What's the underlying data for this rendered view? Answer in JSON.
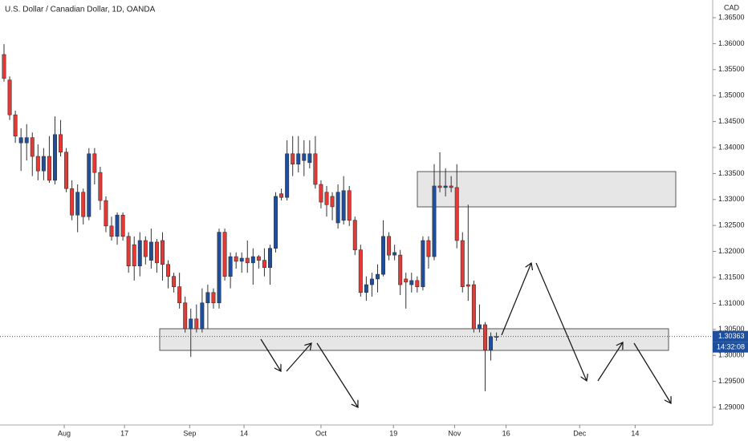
{
  "chart_data": {
    "type": "candlestick",
    "title": "U.S. Dollar / Canadian Dollar, 1D, OANDA",
    "currency": "CAD",
    "up_color": "#1d4f9e",
    "down_color": "#e53935",
    "grid": false,
    "open": [
      1.3579,
      1.353,
      1.3463,
      1.3409,
      1.3409,
      1.3419,
      1.3383,
      1.3355,
      1.3383,
      1.3337,
      1.3425,
      1.3391,
      1.3321,
      1.327,
      1.3314,
      1.3267,
      1.3388,
      1.3352,
      1.3298,
      1.3249,
      1.3229,
      1.327,
      1.3229,
      1.3213,
      1.3172,
      1.3221,
      1.3183,
      1.3218,
      1.3221,
      1.3175,
      1.3152,
      1.3132,
      1.3101,
      1.3051,
      1.307,
      1.3051,
      1.3101,
      1.3121,
      1.3101,
      1.3237,
      1.3152,
      1.319,
      1.3181,
      1.3187,
      1.3178,
      1.319,
      1.3183,
      1.3169,
      1.3206,
      1.3311,
      1.3304,
      1.3388,
      1.3368,
      1.3375,
      1.3371,
      1.3388,
      1.3329,
      1.3314,
      1.3306,
      1.3255,
      1.326,
      1.3317,
      1.326,
      1.3203,
      1.3121,
      1.3136,
      1.3147,
      1.3156,
      1.3229,
      1.3193,
      1.3193,
      1.3147,
      1.3136,
      1.3144,
      1.3132,
      1.3221,
      1.319,
      1.3326,
      1.3323,
      1.3326,
      1.3323,
      1.3221,
      1.3136,
      1.3136,
      1.3051,
      1.3059,
      1.301,
      1.3036
    ],
    "high": [
      1.3599,
      1.3537,
      1.3471,
      1.3437,
      1.3445,
      1.3429,
      1.3406,
      1.3399,
      1.3422,
      1.346,
      1.3453,
      1.3399,
      1.3337,
      1.3329,
      1.3321,
      1.3399,
      1.3399,
      1.3363,
      1.3306,
      1.3267,
      1.3275,
      1.3275,
      1.3237,
      1.3229,
      1.3237,
      1.3229,
      1.3244,
      1.3224,
      1.3237,
      1.3183,
      1.3159,
      1.3159,
      1.3113,
      1.309,
      1.3098,
      1.3129,
      1.3136,
      1.3129,
      1.3244,
      1.3244,
      1.3198,
      1.3198,
      1.3198,
      1.3221,
      1.3206,
      1.3193,
      1.3206,
      1.3213,
      1.3314,
      1.3321,
      1.3414,
      1.3422,
      1.3422,
      1.3414,
      1.3414,
      1.3422,
      1.3337,
      1.3326,
      1.3314,
      1.3329,
      1.3345,
      1.3326,
      1.3267,
      1.3213,
      1.3152,
      1.3159,
      1.3175,
      1.326,
      1.3237,
      1.3213,
      1.3203,
      1.3159,
      1.3159,
      1.3152,
      1.3229,
      1.3229,
      1.3368,
      1.3391,
      1.336,
      1.3345,
      1.3368,
      1.3237,
      1.329,
      1.3144,
      1.3098,
      1.3064,
      1.3044,
      1.3044
    ],
    "low": [
      1.3527,
      1.3453,
      1.3409,
      1.3355,
      1.3375,
      1.3345,
      1.3337,
      1.3337,
      1.3332,
      1.3329,
      1.3383,
      1.3314,
      1.326,
      1.3237,
      1.3252,
      1.326,
      1.3329,
      1.328,
      1.3237,
      1.3221,
      1.3213,
      1.3221,
      1.3159,
      1.3144,
      1.3152,
      1.3175,
      1.3167,
      1.3159,
      1.3144,
      1.3129,
      1.3121,
      1.309,
      1.3044,
      1.2997,
      1.3044,
      1.3044,
      1.3051,
      1.309,
      1.309,
      1.3144,
      1.3129,
      1.3167,
      1.3159,
      1.3159,
      1.3136,
      1.3167,
      1.3152,
      1.3136,
      1.3198,
      1.3298,
      1.3298,
      1.3345,
      1.3352,
      1.3345,
      1.336,
      1.3321,
      1.3283,
      1.3267,
      1.326,
      1.3244,
      1.3252,
      1.3249,
      1.3193,
      1.3113,
      1.3105,
      1.3113,
      1.3121,
      1.3152,
      1.3183,
      1.3183,
      1.3116,
      1.309,
      1.3121,
      1.3121,
      1.3125,
      1.3167,
      1.3183,
      1.3314,
      1.3306,
      1.3314,
      1.3206,
      1.3121,
      1.3105,
      1.3044,
      1.3044,
      1.2931,
      1.299,
      1.3028
    ],
    "close": [
      1.3533,
      1.3463,
      1.3422,
      1.3419,
      1.3419,
      1.3383,
      1.3355,
      1.3383,
      1.3337,
      1.3425,
      1.3391,
      1.3321,
      1.327,
      1.3314,
      1.3267,
      1.3388,
      1.3352,
      1.3298,
      1.3249,
      1.3229,
      1.327,
      1.3229,
      1.3172,
      1.3172,
      1.3221,
      1.319,
      1.3218,
      1.3178,
      1.3175,
      1.3152,
      1.3132,
      1.3101,
      1.3051,
      1.307,
      1.3051,
      1.3101,
      1.3121,
      1.3101,
      1.3237,
      1.3152,
      1.319,
      1.3181,
      1.3187,
      1.3178,
      1.319,
      1.3183,
      1.3169,
      1.3206,
      1.3306,
      1.3304,
      1.3388,
      1.3368,
      1.3388,
      1.3388,
      1.3388,
      1.3329,
      1.3295,
      1.329,
      1.3286,
      1.3314,
      1.3317,
      1.326,
      1.3203,
      1.3121,
      1.3136,
      1.3147,
      1.3156,
      1.3229,
      1.3193,
      1.3198,
      1.3136,
      1.3141,
      1.3144,
      1.3132,
      1.3221,
      1.319,
      1.3326,
      1.3323,
      1.3326,
      1.3323,
      1.3221,
      1.3132,
      1.3133,
      1.3051,
      1.3059,
      1.301,
      1.3036,
      1.30363
    ],
    "countdown": "14:32:08",
    "xlim": [
      -0.71,
      125.2
    ],
    "xticks": [
      {
        "value": 10.64,
        "label": "Aug"
      },
      {
        "value": 21.28,
        "label": "17"
      },
      {
        "value": 32.8,
        "label": "Sep"
      },
      {
        "value": 42.4,
        "label": "14"
      },
      {
        "value": 56.0,
        "label": "Oct"
      },
      {
        "value": 68.8,
        "label": "19"
      },
      {
        "value": 79.6,
        "label": "Nov"
      },
      {
        "value": 88.7,
        "label": "16"
      },
      {
        "value": 101.7,
        "label": "Dec"
      },
      {
        "value": 111.5,
        "label": "14"
      }
    ],
    "ylim": [
      1.2866,
      1.3684
    ],
    "yticks": [
      {
        "value": 1.365,
        "label": "1.36500"
      },
      {
        "value": 1.36,
        "label": "1.36000"
      },
      {
        "value": 1.355,
        "label": "1.35500"
      },
      {
        "value": 1.35,
        "label": "1.35000"
      },
      {
        "value": 1.345,
        "label": "1.34500"
      },
      {
        "value": 1.34,
        "label": "1.34000"
      },
      {
        "value": 1.335,
        "label": "1.33500"
      },
      {
        "value": 1.33,
        "label": "1.33000"
      },
      {
        "value": 1.325,
        "label": "1.32500"
      },
      {
        "value": 1.32,
        "label": "1.32000"
      },
      {
        "value": 1.315,
        "label": "1.31500"
      },
      {
        "value": 1.31,
        "label": "1.31000"
      },
      {
        "value": 1.305,
        "label": "1.30500"
      },
      {
        "value": 1.3,
        "label": "1.30000"
      },
      {
        "value": 1.295,
        "label": "1.29500"
      },
      {
        "value": 1.29,
        "label": "1.29000"
      }
    ]
  }
}
